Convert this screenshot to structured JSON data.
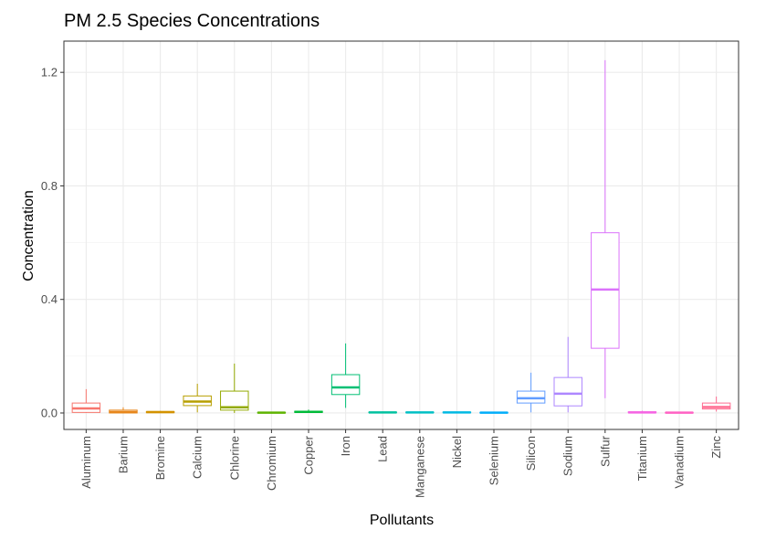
{
  "chart_data": {
    "type": "boxplot",
    "title": "PM 2.5 Species Concentrations",
    "x_label": "Pollutants",
    "y_label": "Concentration",
    "categories": [
      "Aluminum",
      "Barium",
      "Bromine",
      "Calcium",
      "Chlorine",
      "Chromium",
      "Copper",
      "Iron",
      "Lead",
      "Manganese",
      "Nickel",
      "Selenium",
      "Silicon",
      "Sodium",
      "Sulfur",
      "Titanium",
      "Vanadium",
      "Zinc"
    ],
    "colors": [
      "#F8766D",
      "#E7861B",
      "#D39200",
      "#B79F00",
      "#93AA00",
      "#5EB300",
      "#00BA38",
      "#00BF74",
      "#00C19F",
      "#00BFC4",
      "#00B9E3",
      "#00ADFA",
      "#619CFF",
      "#AE87FF",
      "#DB72FB",
      "#F564E3",
      "#FF61C3",
      "#FF6C91"
    ],
    "low": [
      0.0,
      0.0,
      0.0,
      0.002,
      0.0,
      0.0,
      0.0,
      0.018,
      0.0,
      0.0,
      0.0,
      0.0,
      0.002,
      0.002,
      0.052,
      0.0,
      0.0,
      0.005
    ],
    "q1": [
      0.002,
      0.0,
      0.001,
      0.026,
      0.01,
      0.0,
      0.002,
      0.065,
      0.001,
      0.001,
      0.001,
      0.0,
      0.035,
      0.025,
      0.228,
      0.001,
      0.0,
      0.014
    ],
    "median": [
      0.016,
      0.003,
      0.003,
      0.04,
      0.02,
      0.001,
      0.004,
      0.09,
      0.002,
      0.002,
      0.002,
      0.001,
      0.052,
      0.068,
      0.435,
      0.002,
      0.001,
      0.021
    ],
    "q3": [
      0.035,
      0.01,
      0.005,
      0.06,
      0.077,
      0.002,
      0.006,
      0.135,
      0.003,
      0.003,
      0.003,
      0.002,
      0.077,
      0.125,
      0.635,
      0.004,
      0.002,
      0.035
    ],
    "high": [
      0.084,
      0.02,
      0.007,
      0.103,
      0.174,
      0.004,
      0.012,
      0.245,
      0.005,
      0.005,
      0.005,
      0.003,
      0.142,
      0.268,
      1.243,
      0.008,
      0.003,
      0.058
    ],
    "ylim": [
      -0.058,
      1.31
    ],
    "yticks": [
      {
        "value": 0,
        "label": "0.0"
      },
      0.4,
      0.8,
      1.2
    ],
    "grid": true
  }
}
